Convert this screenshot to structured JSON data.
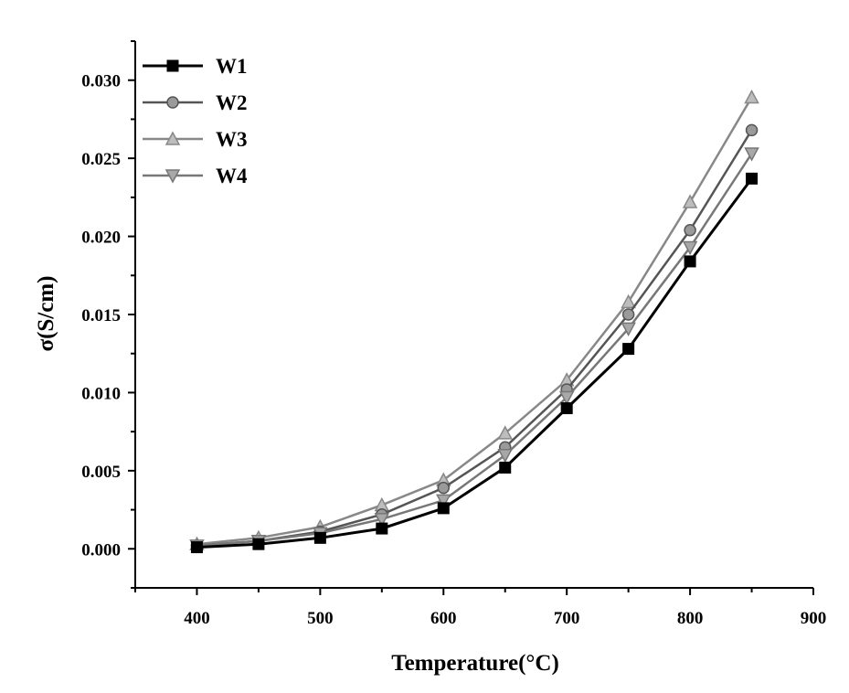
{
  "chart_data": {
    "type": "line",
    "title": "",
    "xlabel": "Temperature(°C)",
    "ylabel": "σ(S/cm)",
    "xlim": [
      350,
      900
    ],
    "ylim": [
      -0.0025,
      0.0325
    ],
    "x_ticks": [
      400,
      500,
      600,
      700,
      800,
      900
    ],
    "y_ticks": [
      0.0,
      0.005,
      0.01,
      0.015,
      0.02,
      0.025,
      0.03
    ],
    "y_tick_labels": [
      "0.000",
      "0.005",
      "0.010",
      "0.015",
      "0.020",
      "0.025",
      "0.030"
    ],
    "x_tick_labels": [
      "400",
      "500",
      "600",
      "700",
      "800",
      "900"
    ],
    "grid": false,
    "legend_position": "top-left",
    "x": [
      400,
      450,
      500,
      550,
      600,
      650,
      700,
      750,
      800,
      850
    ],
    "series": [
      {
        "name": "W1",
        "marker": "square",
        "color": "#000000",
        "values": [
          0.0001,
          0.0003,
          0.0007,
          0.0013,
          0.0026,
          0.0052,
          0.009,
          0.0128,
          0.0184,
          0.0237
        ]
      },
      {
        "name": "W2",
        "marker": "circle",
        "color": "#555555",
        "values": [
          0.0002,
          0.0005,
          0.0011,
          0.0022,
          0.0039,
          0.0065,
          0.0102,
          0.015,
          0.0204,
          0.0268
        ]
      },
      {
        "name": "W3",
        "marker": "triangle-up",
        "color": "#888888",
        "values": [
          0.0003,
          0.0007,
          0.0014,
          0.0028,
          0.0044,
          0.0074,
          0.0108,
          0.0158,
          0.0222,
          0.0289
        ]
      },
      {
        "name": "W4",
        "marker": "triangle-down",
        "color": "#777777",
        "values": [
          0.0002,
          0.0005,
          0.001,
          0.0019,
          0.0031,
          0.006,
          0.0097,
          0.0141,
          0.0193,
          0.0253
        ]
      }
    ]
  }
}
